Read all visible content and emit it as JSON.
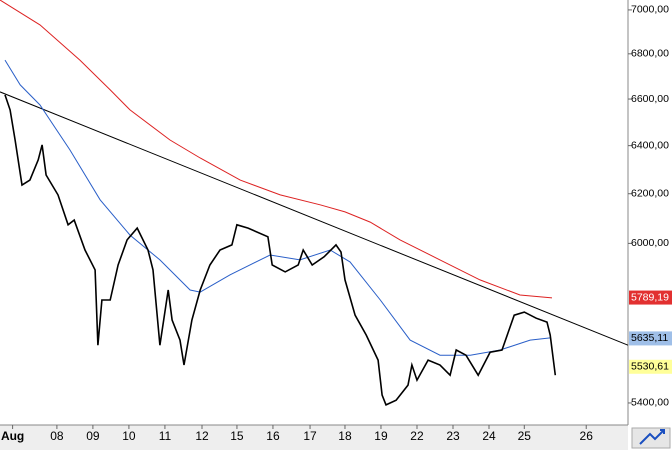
{
  "chart_data": {
    "type": "line",
    "log_y": true,
    "xlim": [
      0,
      17.44
    ],
    "ylim": [
      5322,
      7046
    ],
    "yticks": [
      {
        "value": 5400,
        "label": "5400,00"
      },
      {
        "value": 6000,
        "label": "6000,00"
      },
      {
        "value": 6200,
        "label": "6200,00"
      },
      {
        "value": 6400,
        "label": "6400,00"
      },
      {
        "value": 6600,
        "label": "6600,00"
      },
      {
        "value": 6800,
        "label": "6800,00"
      },
      {
        "value": 7000,
        "label": "7000,00"
      }
    ],
    "xticks": [
      {
        "value": 0.35,
        "label": "Aug"
      },
      {
        "value": 1.58,
        "label": "08"
      },
      {
        "value": 2.58,
        "label": "09"
      },
      {
        "value": 3.58,
        "label": "10"
      },
      {
        "value": 4.58,
        "label": "11"
      },
      {
        "value": 5.61,
        "label": "12"
      },
      {
        "value": 6.58,
        "label": "15"
      },
      {
        "value": 7.58,
        "label": "16"
      },
      {
        "value": 8.61,
        "label": "17"
      },
      {
        "value": 9.58,
        "label": "18"
      },
      {
        "value": 10.58,
        "label": "19"
      },
      {
        "value": 11.58,
        "label": "22"
      },
      {
        "value": 12.58,
        "label": "23"
      },
      {
        "value": 13.58,
        "label": "24"
      },
      {
        "value": 14.56,
        "label": "25"
      },
      {
        "value": 16.28,
        "label": "26"
      }
    ],
    "series": [
      {
        "color": "#dd2222",
        "label_bg": "#e23030",
        "label_fg": "#ffffff",
        "x": [
          0,
          1.11,
          2.22,
          3.06,
          3.61,
          4.72,
          5.56,
          6.67,
          7.78,
          8.89,
          9.58,
          10.28,
          11.11,
          12.22,
          13.33,
          14.44,
          15.33
        ],
        "values": [
          7046,
          6931,
          6772,
          6640,
          6553,
          6424,
          6348,
          6256,
          6195,
          6155,
          6126,
          6085,
          6014,
          5935,
          5857,
          5799,
          5788
        ],
        "last_value": 5789.19,
        "last_label": "5789,19"
      },
      {
        "color": "#2a5fc8",
        "label_bg": "#9fbfe8",
        "label_fg": "#000000",
        "x": [
          0.14,
          0.56,
          1.11,
          1.94,
          2.78,
          3.61,
          4.44,
          5.28,
          5.56,
          6.39,
          7.5,
          8.33,
          9.17,
          9.72,
          10.56,
          11.39,
          12.22,
          13.06,
          13.89,
          14.72,
          15.28
        ],
        "values": [
          6772,
          6662,
          6574,
          6382,
          6175,
          6033,
          5935,
          5818,
          5810,
          5877,
          5954,
          5935,
          5974,
          5927,
          5780,
          5629,
          5573,
          5573,
          5592,
          5629,
          5637
        ],
        "last_value": 5635.11,
        "last_label": "5635,11"
      },
      {
        "color": "#000000",
        "label_bg": "#ffff99",
        "label_fg": "#000000",
        "x": [
          0.14,
          0.28,
          0.42,
          0.61,
          0.83,
          1.06,
          1.17,
          1.28,
          1.61,
          1.89,
          2.06,
          2.36,
          2.64,
          2.72,
          2.83,
          3.06,
          3.28,
          3.53,
          3.81,
          4.11,
          4.25,
          4.44,
          4.67,
          4.78,
          5.0,
          5.11,
          5.33,
          5.56,
          5.83,
          6.11,
          6.44,
          6.58,
          6.89,
          7.44,
          7.56,
          7.92,
          8.28,
          8.42,
          8.67,
          9.0,
          9.33,
          9.47,
          9.58,
          9.86,
          10.17,
          10.5,
          10.61,
          10.72,
          11.0,
          11.33,
          11.44,
          11.58,
          11.89,
          12.22,
          12.5,
          12.67,
          12.94,
          13.28,
          13.61,
          13.94,
          14.28,
          14.56,
          14.89,
          15.19,
          15.28,
          15.42
        ],
        "values": [
          6618,
          6553,
          6424,
          6236,
          6256,
          6340,
          6403,
          6277,
          6195,
          6074,
          6093,
          5974,
          5896,
          5610,
          5780,
          5780,
          5915,
          6014,
          6061,
          5974,
          5896,
          5610,
          5818,
          5704,
          5629,
          5537,
          5704,
          5818,
          5915,
          5974,
          5994,
          6074,
          6061,
          6026,
          5915,
          5888,
          5915,
          5974,
          5915,
          5947,
          5994,
          5966,
          5857,
          5722,
          5648,
          5555,
          5428,
          5393,
          5410,
          5464,
          5537,
          5482,
          5555,
          5537,
          5500,
          5592,
          5573,
          5500,
          5584,
          5592,
          5722,
          5734,
          5711,
          5696,
          5648,
          5500
        ],
        "last_value": 5530.61,
        "last_label": "5530,61"
      }
    ],
    "trendline": {
      "color": "#000000",
      "x": [
        0,
        17.44
      ],
      "values": [
        6631,
        5610
      ]
    }
  }
}
